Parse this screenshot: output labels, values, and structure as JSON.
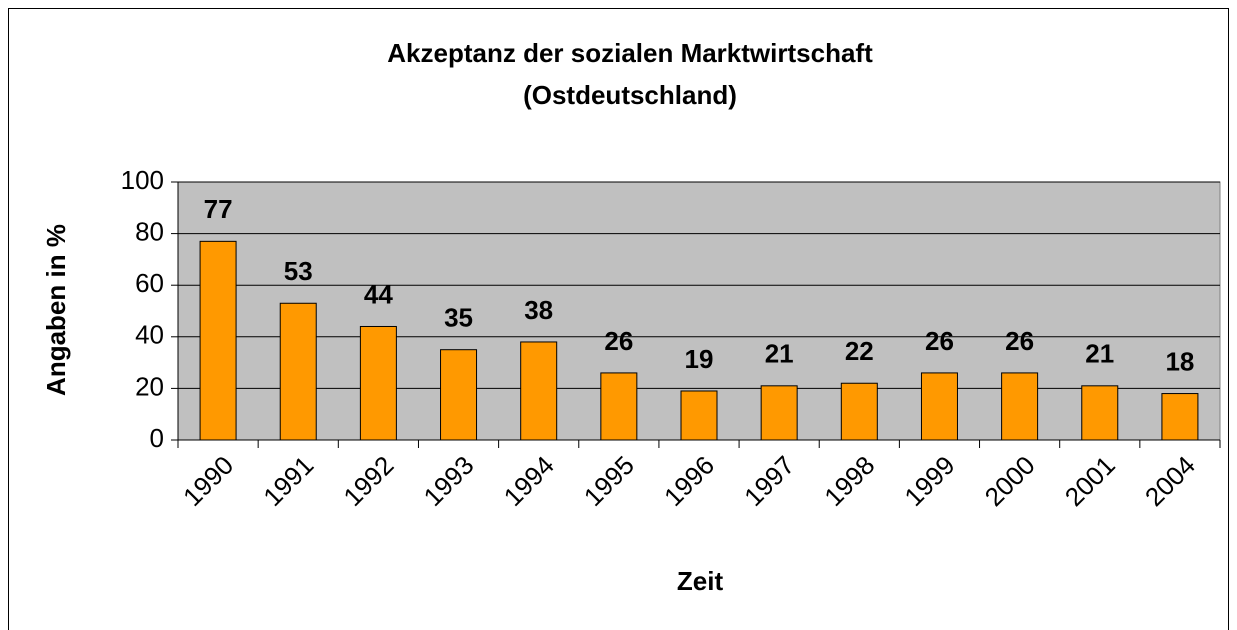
{
  "chart_data": {
    "type": "bar",
    "title": [
      "Akzeptanz der sozialen Marktwirtschaft",
      "(Ostdeutschland)"
    ],
    "x_label": "Zeit",
    "y_label": "Angaben in %",
    "categories": [
      "1990",
      "1991",
      "1992",
      "1993",
      "1994",
      "1995",
      "1996",
      "1997",
      "1998",
      "1999",
      "2000",
      "2001",
      "2004"
    ],
    "values": [
      77,
      53,
      44,
      35,
      38,
      26,
      19,
      21,
      22,
      26,
      26,
      21,
      18
    ],
    "color": "#ff9900",
    "ylim": [
      0,
      100
    ],
    "yticks": [
      0,
      20,
      40,
      60,
      80,
      100
    ],
    "grid": true,
    "plot_background": "#c0c0c0"
  }
}
